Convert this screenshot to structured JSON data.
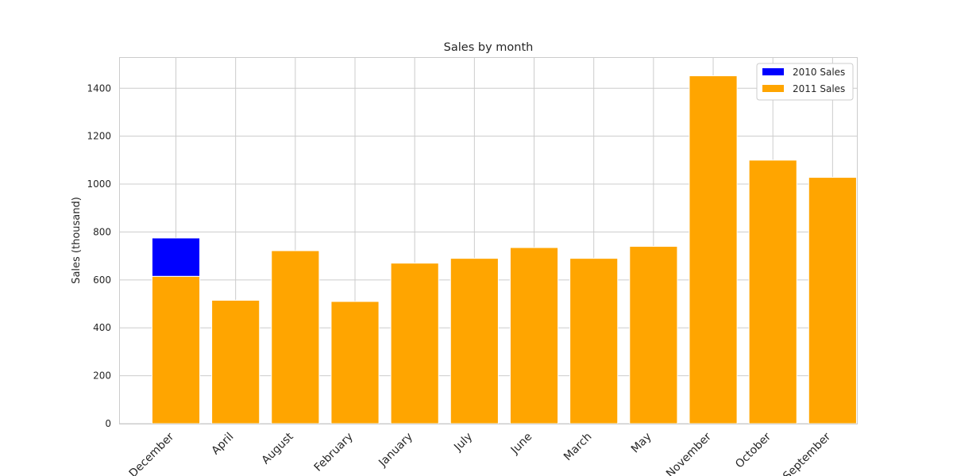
{
  "chart_data": {
    "type": "bar",
    "title": "Sales by month",
    "xlabel": "",
    "ylabel": "Sales (thousand)",
    "ylim": [
      0,
      1530
    ],
    "yticks": [
      0,
      200,
      400,
      600,
      800,
      1000,
      1200,
      1400
    ],
    "grid": true,
    "stacked": true,
    "legend_position": "top-right",
    "categories": [
      "December",
      "April",
      "August",
      "February",
      "January",
      "July",
      "June",
      "March",
      "May",
      "November",
      "October",
      "September"
    ],
    "series": [
      {
        "name": "2010 Sales",
        "color": "#0000ff",
        "values": [
          160,
          0,
          0,
          0,
          0,
          0,
          0,
          0,
          0,
          0,
          0,
          0
        ]
      },
      {
        "name": "2011 Sales",
        "color": "#ffa500",
        "values": [
          615,
          515,
          722,
          510,
          670,
          690,
          735,
          690,
          740,
          1452,
          1100,
          1028
        ]
      }
    ]
  }
}
